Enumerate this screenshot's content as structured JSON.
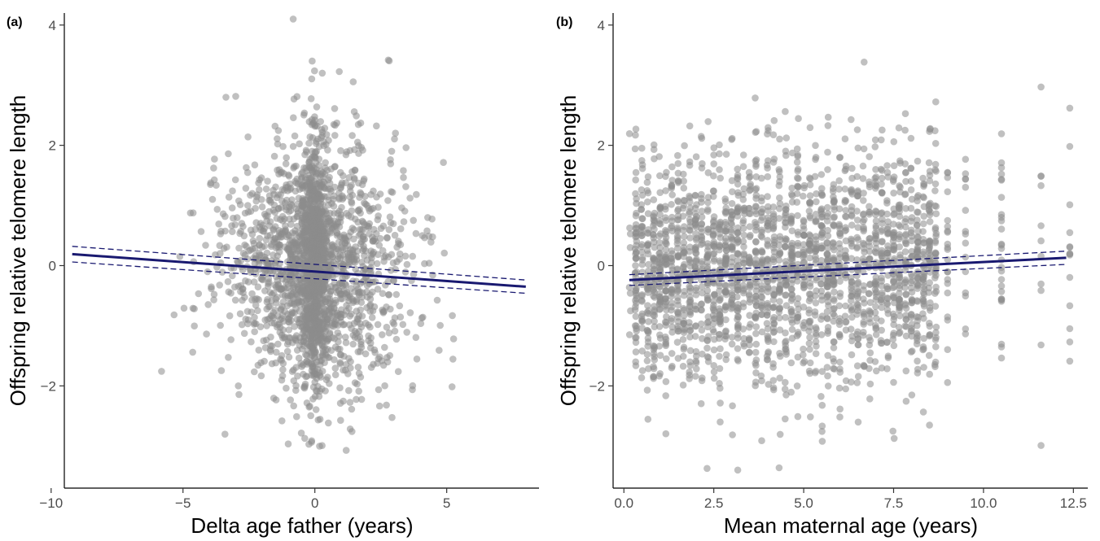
{
  "chart_data": [
    {
      "type": "scatter",
      "panel_label": "(a)",
      "xlabel": "Delta age father (years)",
      "ylabel": "Offspring relative telomere length",
      "xlim": [
        -9.5,
        8.5
      ],
      "ylim": [
        -3.7,
        4.2
      ],
      "xticks": [
        -10,
        -5,
        0,
        5
      ],
      "xtick_labels": [
        "−10",
        "−5",
        "0",
        "5"
      ],
      "yticks": [
        -2,
        0,
        2,
        4
      ],
      "ytick_labels": [
        "−2",
        "0",
        "2",
        "4"
      ],
      "grid": false,
      "legend": "none",
      "point_color": "#8c8c8c",
      "line_color": "#191970",
      "n_points": 2400,
      "points_summary": {
        "x_center": 0,
        "x_sd": 1.8,
        "y_center": 0,
        "y_sd": 1.0
      },
      "fit_line": {
        "x": [
          -9.2,
          8.0
        ],
        "y": [
          0.19,
          -0.35
        ]
      },
      "ci_lower": {
        "x": [
          -9.2,
          8.0
        ],
        "y": [
          0.06,
          -0.46
        ]
      },
      "ci_upper": {
        "x": [
          -9.2,
          8.0
        ],
        "y": [
          0.32,
          -0.24
        ]
      }
    },
    {
      "type": "scatter",
      "panel_label": "(b)",
      "xlabel": "Mean maternal age (years)",
      "ylabel": "Offspring relative telomere length",
      "xlim": [
        -0.3,
        12.9
      ],
      "ylim": [
        -3.7,
        4.2
      ],
      "xticks": [
        0,
        2.5,
        5,
        7.5,
        10,
        12.5
      ],
      "xtick_labels": [
        "0.0",
        "2.5",
        "5.0",
        "7.5",
        "10.0",
        "12.5"
      ],
      "yticks": [
        -2,
        0,
        2,
        4
      ],
      "ytick_labels": [
        "−2",
        "0",
        "2",
        "4"
      ],
      "grid": false,
      "legend": "none",
      "point_color": "#8c8c8c",
      "line_color": "#191970",
      "n_points": 2400,
      "points_summary": {
        "x_center": 4.7,
        "y_center": 0,
        "y_sd": 1.0
      },
      "fit_line": {
        "x": [
          0.15,
          12.3
        ],
        "y": [
          -0.24,
          0.13
        ]
      },
      "ci_lower": {
        "x": [
          0.15,
          12.3
        ],
        "y": [
          -0.33,
          0.02
        ]
      },
      "ci_upper": {
        "x": [
          0.15,
          12.3
        ],
        "y": [
          -0.15,
          0.24
        ]
      }
    }
  ]
}
